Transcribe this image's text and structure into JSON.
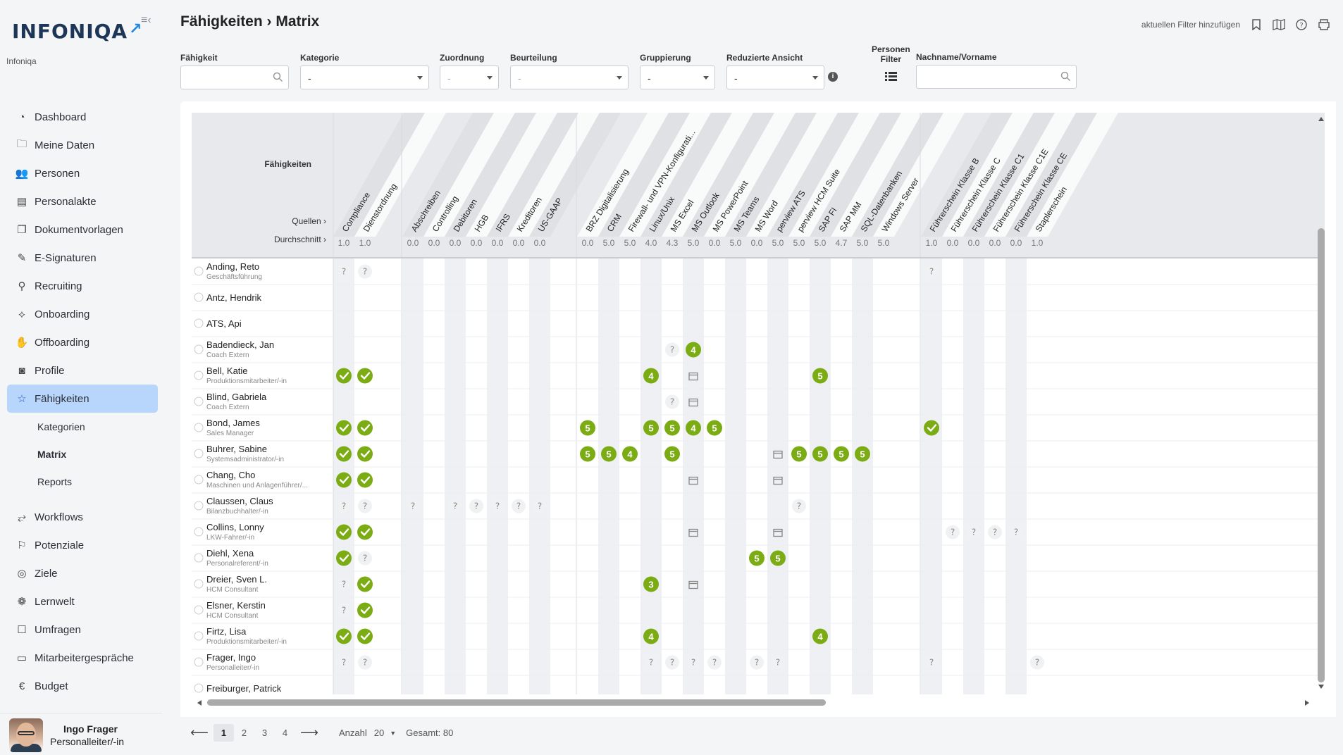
{
  "brand": {
    "logo": "INFONIQA",
    "tenant": "Infoniqa"
  },
  "sidebar": {
    "items": [
      {
        "label": "Dashboard",
        "icon": "dashboard-icon"
      },
      {
        "label": "Meine Daten",
        "icon": "folder-icon"
      },
      {
        "label": "Personen",
        "icon": "people-icon"
      },
      {
        "label": "Personalakte",
        "icon": "file-person-icon"
      },
      {
        "label": "Dokumentvorlagen",
        "icon": "documents-icon"
      },
      {
        "label": "E-Signaturen",
        "icon": "pen-icon"
      },
      {
        "label": "Recruiting",
        "icon": "recruiting-icon"
      },
      {
        "label": "Onboarding",
        "icon": "handshake-icon"
      },
      {
        "label": "Offboarding",
        "icon": "hand-icon"
      },
      {
        "label": "Profile",
        "icon": "profile-icon"
      },
      {
        "label": "Fähigkeiten",
        "icon": "star-icon"
      }
    ],
    "subitems": [
      {
        "label": "Kategorien"
      },
      {
        "label": "Matrix"
      },
      {
        "label": "Reports"
      }
    ],
    "items2": [
      {
        "label": "Workflows",
        "icon": "workflow-icon"
      },
      {
        "label": "Potenziale",
        "icon": "flag-icon"
      },
      {
        "label": "Ziele",
        "icon": "target-icon"
      },
      {
        "label": "Lernwelt",
        "icon": "brain-icon"
      },
      {
        "label": "Umfragen",
        "icon": "survey-icon"
      },
      {
        "label": "Mitarbeitergespräche",
        "icon": "chat-icon"
      },
      {
        "label": "Budget",
        "icon": "euro-icon"
      }
    ]
  },
  "user": {
    "name": "Ingo Frager",
    "role": "Personalleiter/-in"
  },
  "header": {
    "title": "Fähigkeiten › Matrix",
    "add_filter": "aktuellen Filter hinzufügen"
  },
  "filters": {
    "skill": {
      "label": "Fähigkeit",
      "value": ""
    },
    "category": {
      "label": "Kategorie",
      "value": "-"
    },
    "assignment": {
      "label": "Zuordnung",
      "value": "-"
    },
    "rating": {
      "label": "Beurteilung",
      "value": "-"
    },
    "grouping": {
      "label": "Gruppierung",
      "value": "-"
    },
    "reduced": {
      "label": "Reduzierte Ansicht",
      "value": "-"
    },
    "person_filter": {
      "label1": "Personen",
      "label2": "Filter"
    },
    "name": {
      "label": "Nachname/Vorname",
      "value": ""
    }
  },
  "matrix": {
    "header_labels": {
      "skills": "Fähigkeiten",
      "sources": "Quellen ›",
      "average": "Durchschnitt ›"
    },
    "groups": [
      {
        "columns": [
          {
            "name": "Compliance",
            "avg": "1.0"
          },
          {
            "name": "Dienstordnung",
            "avg": "1.0"
          }
        ]
      },
      {
        "columns": [
          {
            "name": "Abschreiben",
            "avg": "0.0"
          },
          {
            "name": "Controlling",
            "avg": "0.0"
          },
          {
            "name": "Debitoren",
            "avg": "0.0"
          },
          {
            "name": "HGB",
            "avg": "0.0"
          },
          {
            "name": "IFRS",
            "avg": "0.0"
          },
          {
            "name": "Kreditoren",
            "avg": "0.0"
          },
          {
            "name": "US-GAAP",
            "avg": "0.0"
          }
        ]
      },
      {
        "columns": [
          {
            "name": "BRZ Digitalisierung",
            "avg": "0.0"
          },
          {
            "name": "CRM",
            "avg": "5.0"
          },
          {
            "name": "Firewall- und VPN-Konfigurati...",
            "avg": "5.0"
          },
          {
            "name": "Linux/Unix",
            "avg": "4.0"
          },
          {
            "name": "MS Excel",
            "avg": "4.3"
          },
          {
            "name": "MS Outlook",
            "avg": "5.0"
          },
          {
            "name": "MS PowerPoint",
            "avg": "0.0"
          },
          {
            "name": "MS Teams",
            "avg": "5.0"
          },
          {
            "name": "MS Word",
            "avg": "0.0"
          },
          {
            "name": "perview ATS",
            "avg": "5.0"
          },
          {
            "name": "perview HCM Suite",
            "avg": "5.0"
          },
          {
            "name": "SAP FI",
            "avg": "5.0"
          },
          {
            "name": "SAP MM",
            "avg": "4.7"
          },
          {
            "name": "SQL-Datenbanken",
            "avg": "5.0"
          },
          {
            "name": "Windows Server",
            "avg": "5.0"
          }
        ]
      },
      {
        "columns": [
          {
            "name": "Führerschein Klasse B",
            "avg": "1.0"
          },
          {
            "name": "Führerschein Klasse C",
            "avg": "0.0"
          },
          {
            "name": "Führerschein Klasse C1",
            "avg": "0.0"
          },
          {
            "name": "Führerschein Klasse C1E",
            "avg": "0.0"
          },
          {
            "name": "Führerschein Klasse CE",
            "avg": "0.0"
          },
          {
            "name": "Staplerschein",
            "avg": "1.0"
          }
        ]
      }
    ],
    "rows": [
      {
        "name": "Anding, Reto",
        "role": "Geschäftsführung",
        "cells": {
          "0": "?",
          "1": "?",
          "24": "?"
        }
      },
      {
        "name": "Antz, Hendrik",
        "role": "",
        "cells": {}
      },
      {
        "name": "ATS, Api",
        "role": "",
        "cells": {}
      },
      {
        "name": "Badendieck, Jan",
        "role": "Coach Extern",
        "cells": {
          "13": "?",
          "14": "4"
        }
      },
      {
        "name": "Bell, Katie",
        "role": "Produktionsmitarbeiter/-in",
        "cells": {
          "0": "check",
          "1": "check",
          "12": "4",
          "14": "cal",
          "20": "5"
        }
      },
      {
        "name": "Blind, Gabriela",
        "role": "Coach Extern",
        "cells": {
          "13": "?",
          "14": "cal"
        }
      },
      {
        "name": "Bond, James",
        "role": "Sales Manager",
        "cells": {
          "0": "check",
          "1": "check",
          "9": "5",
          "12": "5",
          "13": "5",
          "14": "4",
          "15": "5",
          "24": "check"
        }
      },
      {
        "name": "Buhrer, Sabine",
        "role": "Systemsadministrator/-in",
        "cells": {
          "0": "check",
          "1": "check",
          "9": "5",
          "10": "5",
          "11": "4",
          "13": "5",
          "18": "cal",
          "19": "5",
          "20": "5",
          "21": "5",
          "22": "5"
        }
      },
      {
        "name": "Chang, Cho",
        "role": "Maschinen und Anlagenführer/...",
        "cells": {
          "0": "check",
          "1": "check",
          "14": "cal",
          "18": "cal"
        }
      },
      {
        "name": "Claussen, Claus",
        "role": "Bilanzbuchhalter/-in",
        "cells": {
          "0": "?",
          "1": "?",
          "2": "?",
          "4": "?",
          "5": "?",
          "6": "?",
          "7": "?",
          "8": "?",
          "19": "?"
        }
      },
      {
        "name": "Collins, Lonny",
        "role": "LKW-Fahrer/-in",
        "cells": {
          "0": "check",
          "1": "check",
          "14": "cal",
          "18": "cal",
          "25": "?",
          "26": "?",
          "27": "?",
          "28": "?"
        }
      },
      {
        "name": "Diehl, Xena",
        "role": "Personalreferent/-in",
        "cells": {
          "0": "check",
          "1": "?",
          "17": "5",
          "18": "5"
        }
      },
      {
        "name": "Dreier, Sven L.",
        "role": "HCM Consultant",
        "cells": {
          "0": "?",
          "1": "check",
          "12": "3",
          "14": "cal"
        }
      },
      {
        "name": "Elsner, Kerstin",
        "role": "HCM Consultant",
        "cells": {
          "0": "?",
          "1": "check"
        }
      },
      {
        "name": "Firtz, Lisa",
        "role": "Produktionsmitarbeiter/-in",
        "cells": {
          "0": "check",
          "1": "check",
          "12": "4",
          "20": "4"
        }
      },
      {
        "name": "Frager, Ingo",
        "role": "Personalleiter/-in",
        "cells": {
          "0": "?",
          "1": "?",
          "12": "?",
          "13": "?",
          "14": "?",
          "15": "?",
          "17": "?",
          "18": "?",
          "24": "?",
          "29": "?"
        }
      },
      {
        "name": "Freiburger, Patrick",
        "role": "",
        "cells": {}
      }
    ]
  },
  "pagination": {
    "pages": [
      "1",
      "2",
      "3",
      "4"
    ],
    "current": "1",
    "count_label": "Anzahl",
    "count_value": "20",
    "total": "Gesamt: 80"
  },
  "colors": {
    "accent": "#b8d6fb",
    "green": "#7cac14",
    "header": "#e8e9ec",
    "stripe": "#eef0f3"
  }
}
